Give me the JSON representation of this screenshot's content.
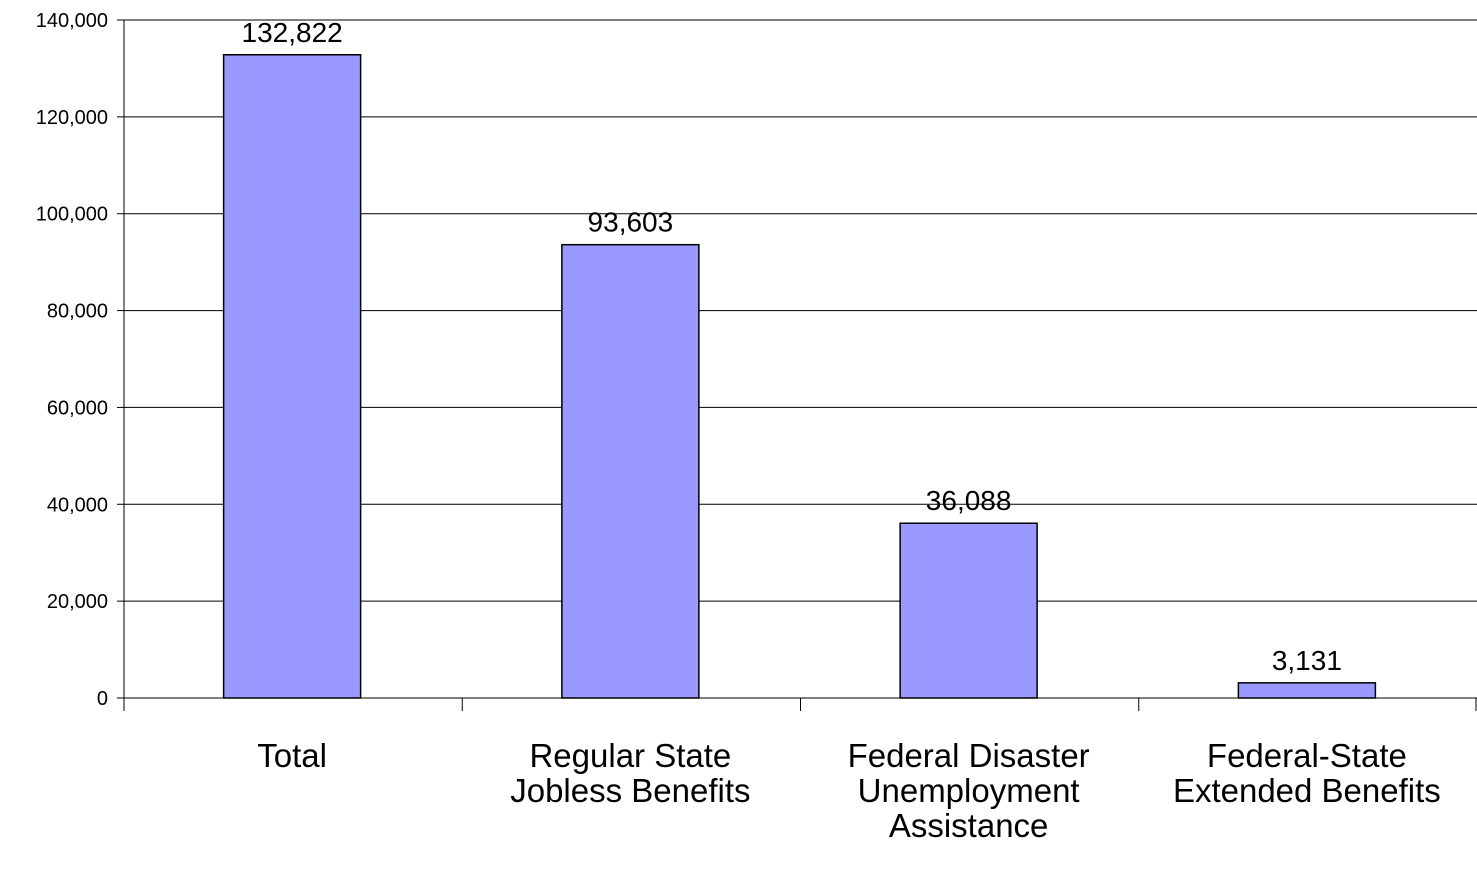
{
  "chart_data": {
    "type": "bar",
    "categories": [
      [
        "Total"
      ],
      [
        "Regular State",
        "Jobless Benefits"
      ],
      [
        "Federal Disaster",
        "Unemployment",
        "Assistance"
      ],
      [
        "Federal-State",
        "Extended Benefits"
      ]
    ],
    "values": [
      132822,
      93603,
      36088,
      3131
    ],
    "data_labels": [
      "132,822",
      "93,603",
      "36,088",
      "3,131"
    ],
    "ylim": [
      0,
      140000
    ],
    "yticks": [
      0,
      20000,
      40000,
      60000,
      80000,
      100000,
      120000,
      140000
    ],
    "ytick_labels": [
      "0",
      "20,000",
      "40,000",
      "60,000",
      "80,000",
      "100,000",
      "120,000",
      "140,000"
    ],
    "grid": true,
    "legend": false,
    "colors": {
      "bar_fill": "#9999ff",
      "bar_stroke": "#000000",
      "gridline": "#000000",
      "background": "#ffffff"
    }
  }
}
